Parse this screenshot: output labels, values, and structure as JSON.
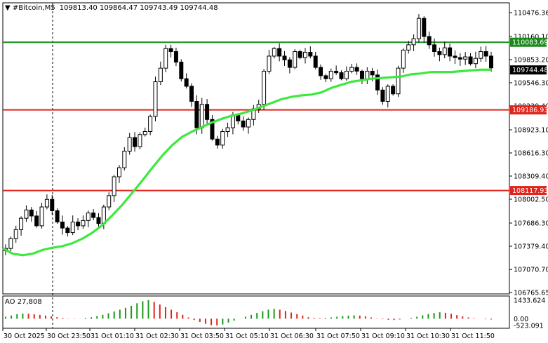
{
  "header": {
    "symbol": "#Bitcoin,M5",
    "ohlc": "109813.40 109864.47 109743.49 109744.48"
  },
  "chart_data": {
    "type": "candlestick",
    "title": "#Bitcoin,M5 109813.40 109864.47 109743.49 109744.48",
    "ylim": [
      106765.65,
      110476.36
    ],
    "y_ticks": [
      "110476.36",
      "110160.10",
      "109853.20",
      "109546.30",
      "109239.40",
      "108923.10",
      "108616.30",
      "108309.40",
      "108002.50",
      "107686.30",
      "107379.40",
      "107070.70",
      "106765.65"
    ],
    "x_ticks": [
      "30 Oct 2025",
      "30 Oct 23:50",
      "31 Oct 01:10",
      "31 Oct 02:30",
      "31 Oct 03:50",
      "31 Oct 05:10",
      "31 Oct 06:30",
      "31 Oct 07:50",
      "31 Oct 09:10",
      "31 Oct 10:30",
      "31 Oct 11:50"
    ],
    "period_separator_label": "30 Oct 23:50",
    "levels": [
      {
        "name": "resistance",
        "value": 110083.69,
        "label": "110083.69",
        "color": "#1a8a1a"
      },
      {
        "name": "support-1",
        "value": 109186.93,
        "label": "109186.93",
        "color": "#e0241b"
      },
      {
        "name": "support-2",
        "value": 108117.93,
        "label": "108117.93",
        "color": "#e0241b"
      }
    ],
    "current_price": {
      "value": 109744.48,
      "label": "109744.48"
    },
    "moving_average_color": "#3ee83e",
    "close_path": [
      107350,
      107480,
      107600,
      107750,
      107860,
      107780,
      107650,
      107900,
      108000,
      107850,
      107700,
      107620,
      107560,
      107700,
      107650,
      107720,
      107820,
      107760,
      107680,
      107900,
      108050,
      108300,
      108420,
      108640,
      108820,
      108700,
      108860,
      108900,
      109100,
      109560,
      109740,
      110000,
      109960,
      109820,
      109600,
      109500,
      109300,
      108950,
      109260,
      109060,
      108800,
      108720,
      108900,
      108950,
      109120,
      109040,
      108960,
      109060,
      109200,
      109260,
      109700,
      109900,
      110000,
      109900,
      109850,
      109750,
      109960,
      109880,
      109950,
      109900,
      109750,
      109640,
      109600,
      109700,
      109680,
      109600,
      109700,
      109750,
      109700,
      109600,
      109700,
      109650,
      109450,
      109300,
      109500,
      109400,
      109740,
      109980,
      110050,
      110130,
      110400,
      110160,
      110050,
      109960,
      109920,
      110010,
      109900,
      109880,
      109860,
      109890,
      109800,
      109870,
      109960,
      109900,
      109744
    ],
    "ma_path": [
      107350,
      107280,
      107260,
      107280,
      107330,
      107360,
      107380,
      107420,
      107480,
      107560,
      107660,
      107790,
      107930,
      108090,
      108250,
      108420,
      108580,
      108720,
      108830,
      108900,
      108960,
      109020,
      109070,
      109110,
      109140,
      109180,
      109230,
      109280,
      109330,
      109360,
      109380,
      109390,
      109420,
      109480,
      109520,
      109560,
      109580,
      109600,
      109610,
      109620,
      109630,
      109660,
      109670,
      109690,
      109690,
      109690,
      109700,
      109710,
      109720,
      109720
    ],
    "ao": {
      "label": "AO 27,808",
      "y_ticks": [
        "1433.624",
        "0.00",
        "-523.091"
      ],
      "ylim": [
        -523.091,
        1433.624
      ],
      "values": [
        150,
        250,
        350,
        400,
        380,
        340,
        300,
        240,
        180,
        120,
        60,
        20,
        -20,
        10,
        60,
        120,
        200,
        300,
        420,
        560,
        700,
        850,
        1000,
        1200,
        1350,
        1433,
        1300,
        1100,
        900,
        700,
        500,
        300,
        100,
        -100,
        -250,
        -400,
        -500,
        -523,
        -450,
        -300,
        -150,
        0,
        150,
        300,
        450,
        580,
        700,
        760,
        700,
        600,
        480,
        360,
        240,
        120,
        60,
        40,
        60,
        100,
        150,
        200,
        230,
        260,
        240,
        180,
        100,
        20,
        -40,
        -80,
        -100,
        -60,
        0,
        60,
        150,
        260,
        360,
        440,
        500,
        460,
        380,
        280,
        180,
        100,
        40,
        0,
        -40,
        -60
      ]
    }
  }
}
